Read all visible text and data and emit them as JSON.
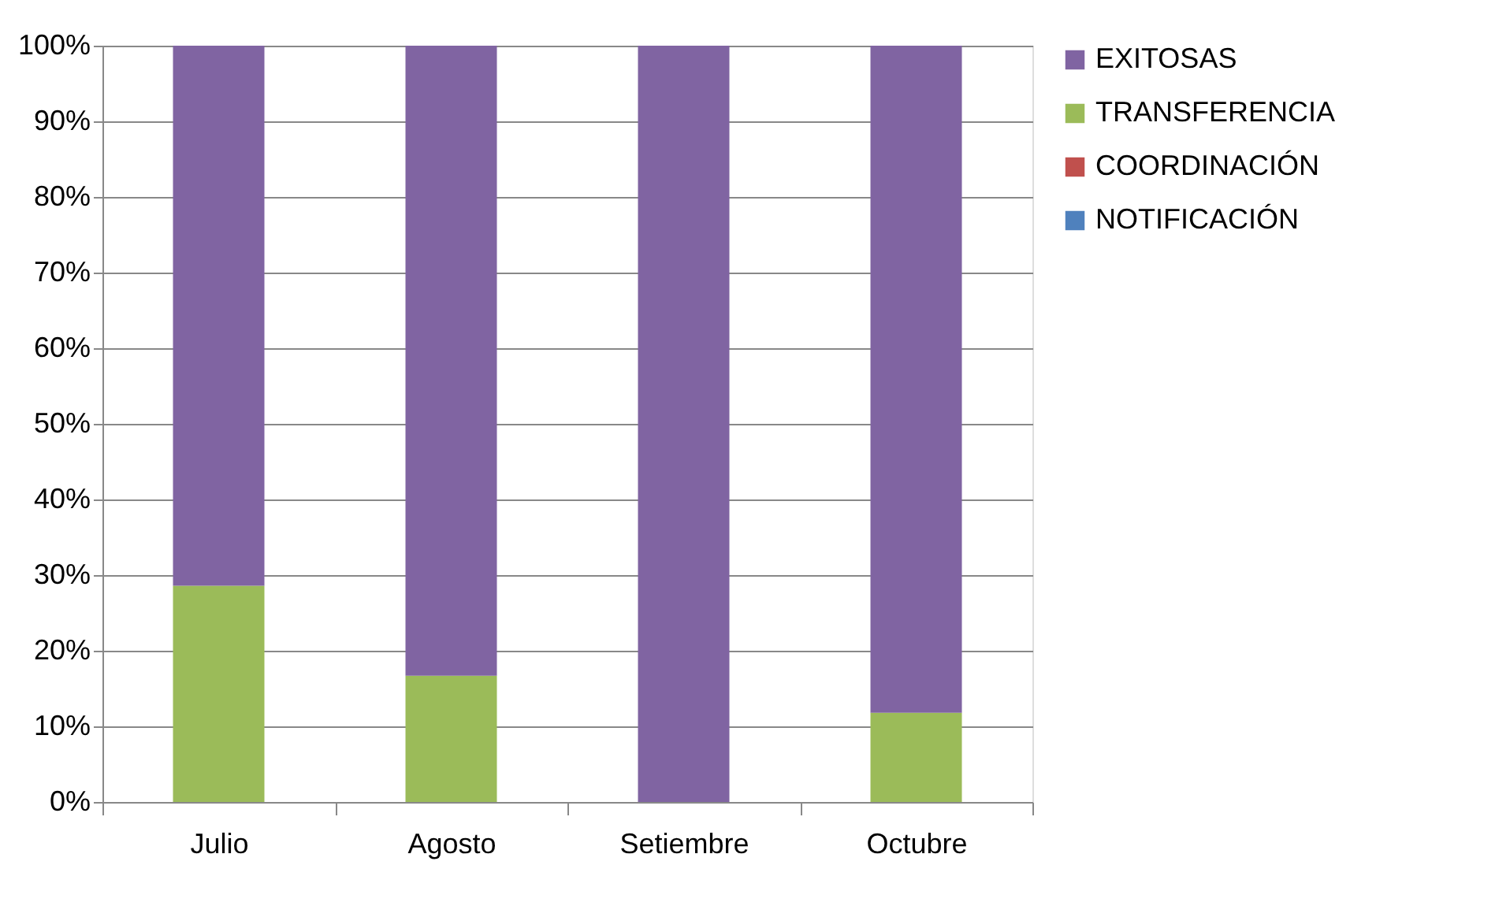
{
  "chart_data": {
    "type": "bar",
    "stacked": true,
    "categories": [
      "Julio",
      "Agosto",
      "Setiembre",
      "Octubre"
    ],
    "series": [
      {
        "name": "NOTIFICACIÓN",
        "color": "#4f81bd",
        "values": [
          0,
          0,
          0,
          0
        ]
      },
      {
        "name": "COORDINACIÓN",
        "color": "#c0504d",
        "values": [
          0,
          0,
          0,
          0
        ]
      },
      {
        "name": "TRANSFERENCIA",
        "color": "#9bbb59",
        "values": [
          28.6,
          16.7,
          0,
          11.8
        ]
      },
      {
        "name": "EXITOSAS",
        "color": "#8064a2",
        "values": [
          71.4,
          83.3,
          100,
          88.2
        ]
      }
    ],
    "ylim": [
      0,
      100
    ],
    "yticks": [
      {
        "value": 0,
        "label": "0%"
      },
      {
        "value": 10,
        "label": "10%"
      },
      {
        "value": 20,
        "label": "20%"
      },
      {
        "value": 30,
        "label": "30%"
      },
      {
        "value": 40,
        "label": "40%"
      },
      {
        "value": 50,
        "label": "50%"
      },
      {
        "value": 60,
        "label": "60%"
      },
      {
        "value": 70,
        "label": "70%"
      },
      {
        "value": 80,
        "label": "80%"
      },
      {
        "value": 90,
        "label": "90%"
      },
      {
        "value": 100,
        "label": "100%"
      }
    ],
    "grid": "y",
    "legend": "right"
  }
}
